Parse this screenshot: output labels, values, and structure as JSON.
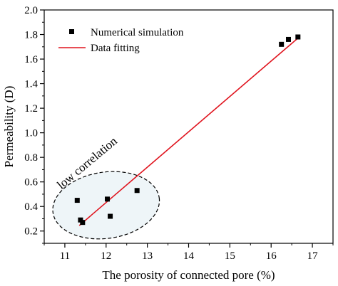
{
  "chart_data": {
    "type": "scatter",
    "xlabel": "The porosity of connected pore (%)",
    "ylabel": "Permeability (D)",
    "xlim": [
      10.5,
      17.5
    ],
    "ylim": [
      0.1,
      2.0
    ],
    "xticks": [
      11,
      12,
      13,
      14,
      15,
      16,
      17
    ],
    "xtick_labels": [
      "11",
      "12",
      "13",
      "14",
      "15",
      "16",
      "17"
    ],
    "yticks": [
      0.2,
      0.4,
      0.6,
      0.8,
      1.0,
      1.2,
      1.4,
      1.6,
      1.8,
      2.0
    ],
    "ytick_labels": [
      "0.2",
      "0.4",
      "0.6",
      "0.8",
      "1.0",
      "1.2",
      "1.4",
      "1.6",
      "1.8",
      "2.0"
    ],
    "grid": false,
    "legend": {
      "position": "top-left"
    },
    "series": [
      {
        "name": "Numerical simulation",
        "kind": "scatter",
        "marker": "square",
        "color": "#000000",
        "x": [
          11.3,
          11.38,
          11.43,
          12.03,
          12.1,
          12.75,
          16.25,
          16.42,
          16.65
        ],
        "y": [
          0.45,
          0.29,
          0.27,
          0.46,
          0.32,
          0.53,
          1.72,
          1.76,
          1.78
        ]
      },
      {
        "name": "Data fitting",
        "kind": "line",
        "color": "#e0141e",
        "x": [
          11.35,
          16.7
        ],
        "y": [
          0.245,
          1.785
        ]
      }
    ],
    "annotations": [
      {
        "text": "low correlation",
        "shape": "dashed-ellipse",
        "fill": "#eef5f8",
        "center": [
          12.0,
          0.41
        ],
        "radius": [
          1.3,
          0.27
        ],
        "label_at": [
          11.6,
          0.73
        ],
        "rotation": -40
      }
    ]
  }
}
